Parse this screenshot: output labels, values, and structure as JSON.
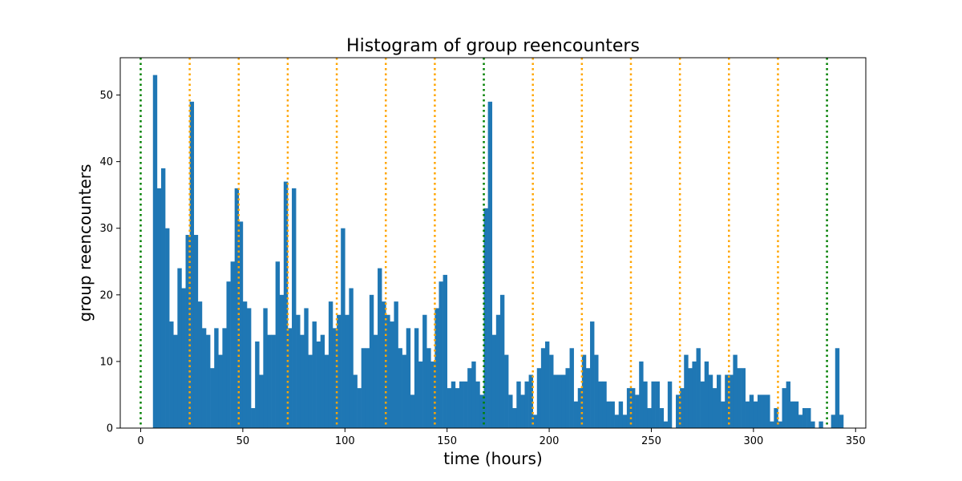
{
  "chart_data": {
    "type": "bar",
    "title": "Histogram of group reencounters",
    "xlabel": "time (hours)",
    "ylabel": "group reencounters",
    "xlim": [
      -10,
      355
    ],
    "ylim": [
      0,
      55.6
    ],
    "xticks": [
      0,
      50,
      100,
      150,
      200,
      250,
      300,
      350
    ],
    "yticks": [
      0,
      10,
      20,
      30,
      40,
      50
    ],
    "grid": false,
    "bar_color": "#1f77b4",
    "bins": {
      "start": 6,
      "width": 2,
      "values": [
        53,
        36,
        39,
        30,
        16,
        14,
        24,
        21,
        29,
        49,
        29,
        19,
        15,
        14,
        9,
        15,
        11,
        15,
        22,
        25,
        36,
        31,
        19,
        18,
        3,
        13,
        8,
        18,
        14,
        14,
        25,
        20,
        37,
        15,
        36,
        17,
        14,
        18,
        11,
        16,
        13,
        14,
        11,
        19,
        15,
        17,
        30,
        17,
        21,
        8,
        6,
        12,
        12,
        20,
        14,
        24,
        19,
        17,
        16,
        19,
        12,
        11,
        15,
        5,
        15,
        10,
        17,
        12,
        10,
        18,
        22,
        23,
        6,
        7,
        6,
        7,
        7,
        9,
        10,
        7,
        5,
        33,
        49,
        14,
        17,
        20,
        11,
        5,
        3,
        7,
        5,
        7,
        8,
        2,
        9,
        12,
        13,
        11,
        8,
        8,
        8,
        9,
        12,
        4,
        6,
        11,
        9,
        16,
        11,
        7,
        7,
        4,
        4,
        2,
        4,
        2,
        6,
        6,
        5,
        10,
        7,
        3,
        7,
        7,
        3,
        1,
        7,
        0,
        5,
        6,
        11,
        9,
        10,
        12,
        7,
        10,
        8,
        6,
        8,
        4,
        8,
        8,
        11,
        9,
        9,
        4,
        5,
        4,
        5,
        5,
        5,
        1,
        3,
        1,
        6,
        7,
        4,
        4,
        2,
        3,
        3,
        1,
        0,
        1,
        0,
        0,
        2,
        12,
        2
      ]
    },
    "reference_lines": [
      {
        "x": 0,
        "color": "#008000"
      },
      {
        "x": 24,
        "color": "#ffa500"
      },
      {
        "x": 48,
        "color": "#ffa500"
      },
      {
        "x": 72,
        "color": "#ffa500"
      },
      {
        "x": 96,
        "color": "#ffa500"
      },
      {
        "x": 120,
        "color": "#ffa500"
      },
      {
        "x": 144,
        "color": "#ffa500"
      },
      {
        "x": 168,
        "color": "#008000"
      },
      {
        "x": 192,
        "color": "#ffa500"
      },
      {
        "x": 216,
        "color": "#ffa500"
      },
      {
        "x": 240,
        "color": "#ffa500"
      },
      {
        "x": 264,
        "color": "#ffa500"
      },
      {
        "x": 288,
        "color": "#ffa500"
      },
      {
        "x": 312,
        "color": "#ffa500"
      },
      {
        "x": 336,
        "color": "#008000"
      }
    ]
  }
}
